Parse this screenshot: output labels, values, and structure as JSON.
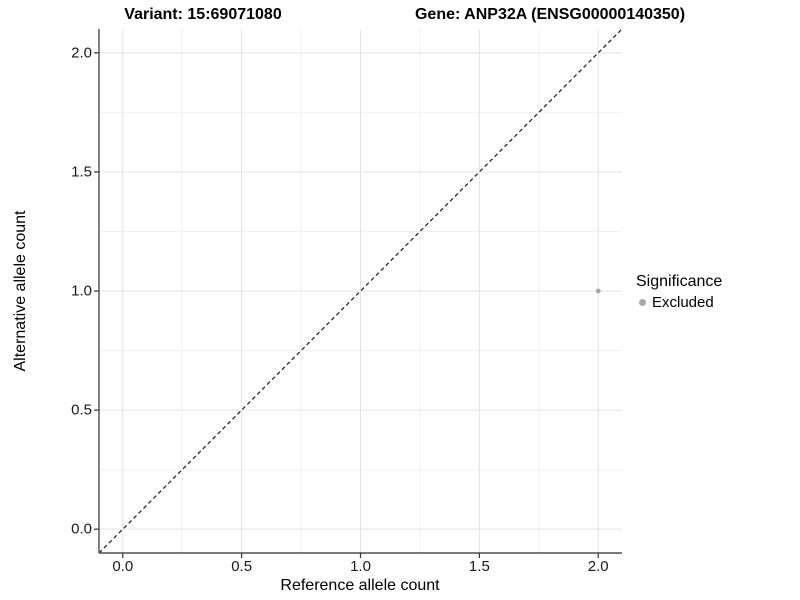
{
  "title": {
    "left": "Variant: 15:69071080",
    "right": "Gene: ANP32A (ENSG00000140350)"
  },
  "legend": {
    "title": "Significance",
    "items": [
      {
        "label": "Excluded",
        "color": "#a8a8a8"
      }
    ]
  },
  "colors": {
    "point": "#a8a8a8",
    "grid_major": "#e3e3e3",
    "grid_minor": "#f0f0f0",
    "axis_line": "#4d4d4d",
    "tick_mark": "#333333",
    "reference_line": "#1a1a1a",
    "background": "#ffffff"
  },
  "chart_data": {
    "type": "scatter",
    "title": "Variant: 15:69071080 / Gene: ANP32A (ENSG00000140350)",
    "xlabel": "Reference allele count",
    "ylabel": "Alternative allele count",
    "xlim": [
      -0.1,
      2.1
    ],
    "ylim": [
      -0.1,
      2.1
    ],
    "x_ticks": {
      "values": [
        0,
        0.5,
        1,
        1.5,
        2
      ],
      "labels": [
        "0.0",
        "0.5",
        "1.0",
        "1.5",
        "2.0"
      ]
    },
    "y_ticks": {
      "values": [
        0,
        0.5,
        1,
        1.5,
        2
      ],
      "labels": [
        "0.0",
        "0.5",
        "1.0",
        "1.5",
        "2.0"
      ]
    },
    "x_minor": [
      0.25,
      0.75,
      1.25,
      1.75
    ],
    "y_minor": [
      0.25,
      0.75,
      1.25,
      1.75
    ],
    "grid": "on",
    "legend_position": "right",
    "series": [
      {
        "name": "Excluded",
        "color": "#a8a8a8",
        "points": [
          [
            2.0,
            1.0
          ]
        ]
      }
    ],
    "reference_line": {
      "slope": 1,
      "intercept": 0,
      "style": "dashed"
    }
  }
}
